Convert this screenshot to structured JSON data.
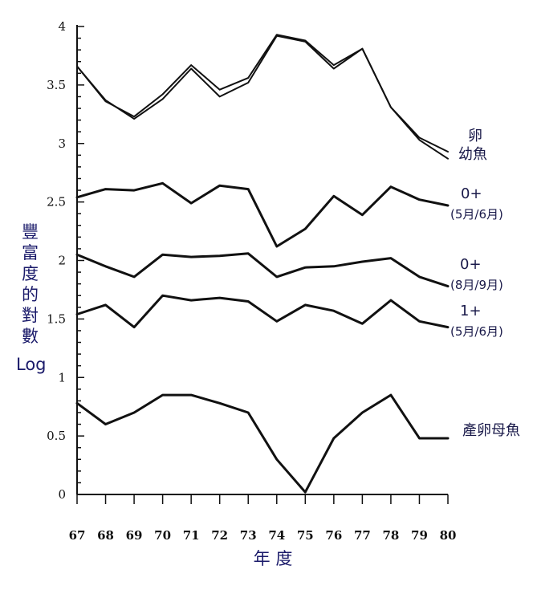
{
  "chart_data": {
    "type": "line",
    "x": [
      67,
      68,
      69,
      70,
      71,
      72,
      73,
      74,
      75,
      76,
      77,
      78,
      79,
      80
    ],
    "xlabel": "年 度",
    "ylabel_chars": [
      "豐",
      "富",
      "度",
      "的",
      "對",
      "數"
    ],
    "ylabel_suffix": "Log",
    "ylim": [
      0,
      4
    ],
    "yticks": [
      0,
      0.5,
      1,
      1.5,
      2,
      2.5,
      3,
      3.5,
      4
    ],
    "ytick_labels": [
      "0",
      "0.5",
      "1",
      "1.5",
      "2",
      "2.5",
      "3",
      "3.5",
      "4"
    ],
    "xtick_labels": [
      "67",
      "68",
      "69",
      "70",
      "71",
      "72",
      "73",
      "74",
      "75",
      "76",
      "77",
      "78",
      "79",
      "80"
    ],
    "grid": false,
    "series": [
      {
        "name": "卵",
        "values": [
          3.66,
          3.36,
          3.23,
          3.42,
          3.67,
          3.46,
          3.56,
          3.93,
          3.88,
          3.67,
          3.81,
          3.31,
          3.05,
          2.93
        ]
      },
      {
        "name": "幼魚",
        "values": [
          3.66,
          3.37,
          3.21,
          3.38,
          3.64,
          3.4,
          3.52,
          3.92,
          3.87,
          3.64,
          3.81,
          3.31,
          3.03,
          2.87
        ]
      },
      {
        "name": "0+",
        "sub": "(5月/6月)",
        "values": [
          2.54,
          2.61,
          2.6,
          2.66,
          2.49,
          2.64,
          2.61,
          2.12,
          2.27,
          2.55,
          2.39,
          2.63,
          2.52,
          2.47
        ]
      },
      {
        "name": "0+",
        "sub": "(8月/9月)",
        "values": [
          2.05,
          1.95,
          1.86,
          2.05,
          2.03,
          2.04,
          2.06,
          1.86,
          1.94,
          1.95,
          1.99,
          2.02,
          1.86,
          1.78
        ]
      },
      {
        "name": "1+",
        "sub": "(5月/6月)",
        "values": [
          1.54,
          1.62,
          1.43,
          1.7,
          1.66,
          1.68,
          1.65,
          1.48,
          1.62,
          1.57,
          1.46,
          1.66,
          1.48,
          1.43
        ]
      },
      {
        "name": "產卵母魚",
        "values": [
          0.78,
          0.6,
          0.7,
          0.85,
          0.85,
          0.78,
          0.7,
          0.3,
          0.02,
          0.48,
          0.7,
          0.85,
          0.48,
          0.48
        ]
      }
    ]
  }
}
